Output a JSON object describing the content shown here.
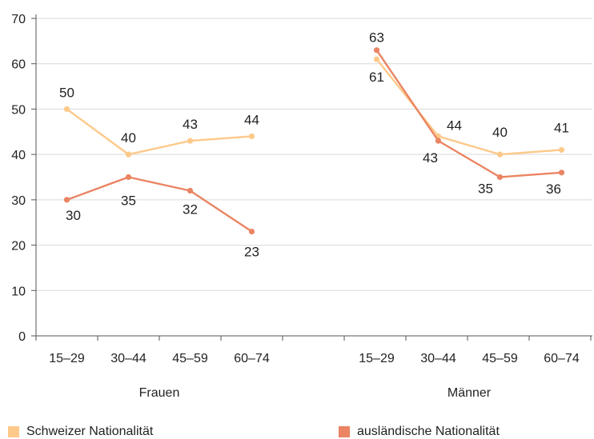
{
  "chart_data": {
    "type": "line",
    "groups": [
      {
        "label": "Frauen",
        "categories": [
          "15–29",
          "30–44",
          "45–59",
          "60–74"
        ]
      },
      {
        "label": "Männer",
        "categories": [
          "15–29",
          "30–44",
          "45–59",
          "60–74"
        ]
      }
    ],
    "series": [
      {
        "name": "Schweizer Nationalität",
        "color": "#fdc98a",
        "values": [
          [
            50,
            40,
            43,
            44
          ],
          [
            61,
            44,
            40,
            41
          ]
        ],
        "labels": [
          [
            "50",
            "40",
            "43",
            "44"
          ],
          [
            "61",
            "44",
            "40",
            "41"
          ]
        ]
      },
      {
        "name": "ausländische Nationalität",
        "color": "#ea8462",
        "values": [
          [
            30,
            35,
            32,
            23
          ],
          [
            63,
            43,
            35,
            36
          ]
        ],
        "labels": [
          [
            "30",
            "35",
            "32",
            "23"
          ],
          [
            "63",
            "43",
            "35",
            "36"
          ]
        ]
      }
    ],
    "y_ticks": [
      "0",
      "10",
      "20",
      "30",
      "40",
      "50",
      "60",
      "70"
    ],
    "ylim": [
      0,
      70
    ],
    "grid": "horizontal",
    "legend_position": "bottom"
  }
}
